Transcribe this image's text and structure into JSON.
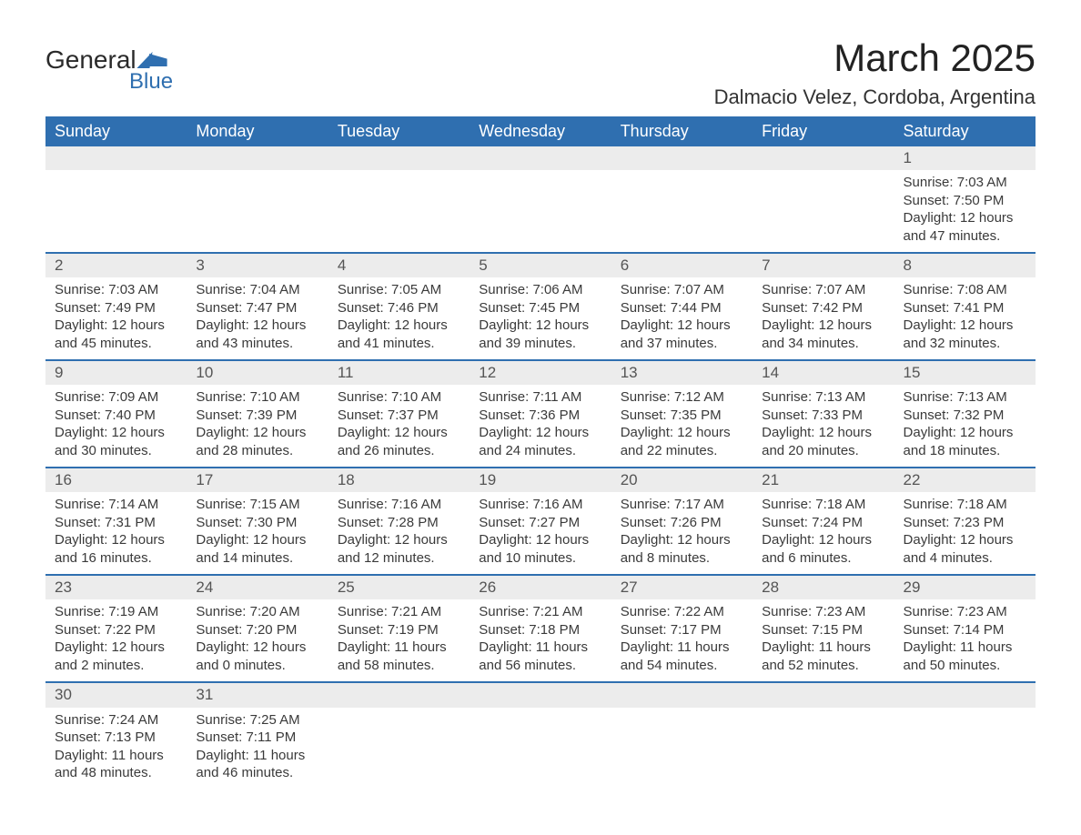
{
  "logo": {
    "text1": "General",
    "text2": "Blue",
    "brand_color": "#2f6fb0"
  },
  "title": "March 2025",
  "subtitle": "Dalmacio Velez, Cordoba, Argentina",
  "colors": {
    "header_bg": "#2f6fb0",
    "header_text": "#ffffff",
    "daynum_bg": "#ececec",
    "text": "#3a3a3a",
    "separator": "#2f6fb0"
  },
  "day_headers": [
    "Sunday",
    "Monday",
    "Tuesday",
    "Wednesday",
    "Thursday",
    "Friday",
    "Saturday"
  ],
  "weeks": [
    [
      null,
      null,
      null,
      null,
      null,
      null,
      {
        "n": "1",
        "sunrise": "Sunrise: 7:03 AM",
        "sunset": "Sunset: 7:50 PM",
        "day1": "Daylight: 12 hours",
        "day2": "and 47 minutes."
      }
    ],
    [
      {
        "n": "2",
        "sunrise": "Sunrise: 7:03 AM",
        "sunset": "Sunset: 7:49 PM",
        "day1": "Daylight: 12 hours",
        "day2": "and 45 minutes."
      },
      {
        "n": "3",
        "sunrise": "Sunrise: 7:04 AM",
        "sunset": "Sunset: 7:47 PM",
        "day1": "Daylight: 12 hours",
        "day2": "and 43 minutes."
      },
      {
        "n": "4",
        "sunrise": "Sunrise: 7:05 AM",
        "sunset": "Sunset: 7:46 PM",
        "day1": "Daylight: 12 hours",
        "day2": "and 41 minutes."
      },
      {
        "n": "5",
        "sunrise": "Sunrise: 7:06 AM",
        "sunset": "Sunset: 7:45 PM",
        "day1": "Daylight: 12 hours",
        "day2": "and 39 minutes."
      },
      {
        "n": "6",
        "sunrise": "Sunrise: 7:07 AM",
        "sunset": "Sunset: 7:44 PM",
        "day1": "Daylight: 12 hours",
        "day2": "and 37 minutes."
      },
      {
        "n": "7",
        "sunrise": "Sunrise: 7:07 AM",
        "sunset": "Sunset: 7:42 PM",
        "day1": "Daylight: 12 hours",
        "day2": "and 34 minutes."
      },
      {
        "n": "8",
        "sunrise": "Sunrise: 7:08 AM",
        "sunset": "Sunset: 7:41 PM",
        "day1": "Daylight: 12 hours",
        "day2": "and 32 minutes."
      }
    ],
    [
      {
        "n": "9",
        "sunrise": "Sunrise: 7:09 AM",
        "sunset": "Sunset: 7:40 PM",
        "day1": "Daylight: 12 hours",
        "day2": "and 30 minutes."
      },
      {
        "n": "10",
        "sunrise": "Sunrise: 7:10 AM",
        "sunset": "Sunset: 7:39 PM",
        "day1": "Daylight: 12 hours",
        "day2": "and 28 minutes."
      },
      {
        "n": "11",
        "sunrise": "Sunrise: 7:10 AM",
        "sunset": "Sunset: 7:37 PM",
        "day1": "Daylight: 12 hours",
        "day2": "and 26 minutes."
      },
      {
        "n": "12",
        "sunrise": "Sunrise: 7:11 AM",
        "sunset": "Sunset: 7:36 PM",
        "day1": "Daylight: 12 hours",
        "day2": "and 24 minutes."
      },
      {
        "n": "13",
        "sunrise": "Sunrise: 7:12 AM",
        "sunset": "Sunset: 7:35 PM",
        "day1": "Daylight: 12 hours",
        "day2": "and 22 minutes."
      },
      {
        "n": "14",
        "sunrise": "Sunrise: 7:13 AM",
        "sunset": "Sunset: 7:33 PM",
        "day1": "Daylight: 12 hours",
        "day2": "and 20 minutes."
      },
      {
        "n": "15",
        "sunrise": "Sunrise: 7:13 AM",
        "sunset": "Sunset: 7:32 PM",
        "day1": "Daylight: 12 hours",
        "day2": "and 18 minutes."
      }
    ],
    [
      {
        "n": "16",
        "sunrise": "Sunrise: 7:14 AM",
        "sunset": "Sunset: 7:31 PM",
        "day1": "Daylight: 12 hours",
        "day2": "and 16 minutes."
      },
      {
        "n": "17",
        "sunrise": "Sunrise: 7:15 AM",
        "sunset": "Sunset: 7:30 PM",
        "day1": "Daylight: 12 hours",
        "day2": "and 14 minutes."
      },
      {
        "n": "18",
        "sunrise": "Sunrise: 7:16 AM",
        "sunset": "Sunset: 7:28 PM",
        "day1": "Daylight: 12 hours",
        "day2": "and 12 minutes."
      },
      {
        "n": "19",
        "sunrise": "Sunrise: 7:16 AM",
        "sunset": "Sunset: 7:27 PM",
        "day1": "Daylight: 12 hours",
        "day2": "and 10 minutes."
      },
      {
        "n": "20",
        "sunrise": "Sunrise: 7:17 AM",
        "sunset": "Sunset: 7:26 PM",
        "day1": "Daylight: 12 hours",
        "day2": "and 8 minutes."
      },
      {
        "n": "21",
        "sunrise": "Sunrise: 7:18 AM",
        "sunset": "Sunset: 7:24 PM",
        "day1": "Daylight: 12 hours",
        "day2": "and 6 minutes."
      },
      {
        "n": "22",
        "sunrise": "Sunrise: 7:18 AM",
        "sunset": "Sunset: 7:23 PM",
        "day1": "Daylight: 12 hours",
        "day2": "and 4 minutes."
      }
    ],
    [
      {
        "n": "23",
        "sunrise": "Sunrise: 7:19 AM",
        "sunset": "Sunset: 7:22 PM",
        "day1": "Daylight: 12 hours",
        "day2": "and 2 minutes."
      },
      {
        "n": "24",
        "sunrise": "Sunrise: 7:20 AM",
        "sunset": "Sunset: 7:20 PM",
        "day1": "Daylight: 12 hours",
        "day2": "and 0 minutes."
      },
      {
        "n": "25",
        "sunrise": "Sunrise: 7:21 AM",
        "sunset": "Sunset: 7:19 PM",
        "day1": "Daylight: 11 hours",
        "day2": "and 58 minutes."
      },
      {
        "n": "26",
        "sunrise": "Sunrise: 7:21 AM",
        "sunset": "Sunset: 7:18 PM",
        "day1": "Daylight: 11 hours",
        "day2": "and 56 minutes."
      },
      {
        "n": "27",
        "sunrise": "Sunrise: 7:22 AM",
        "sunset": "Sunset: 7:17 PM",
        "day1": "Daylight: 11 hours",
        "day2": "and 54 minutes."
      },
      {
        "n": "28",
        "sunrise": "Sunrise: 7:23 AM",
        "sunset": "Sunset: 7:15 PM",
        "day1": "Daylight: 11 hours",
        "day2": "and 52 minutes."
      },
      {
        "n": "29",
        "sunrise": "Sunrise: 7:23 AM",
        "sunset": "Sunset: 7:14 PM",
        "day1": "Daylight: 11 hours",
        "day2": "and 50 minutes."
      }
    ],
    [
      {
        "n": "30",
        "sunrise": "Sunrise: 7:24 AM",
        "sunset": "Sunset: 7:13 PM",
        "day1": "Daylight: 11 hours",
        "day2": "and 48 minutes."
      },
      {
        "n": "31",
        "sunrise": "Sunrise: 7:25 AM",
        "sunset": "Sunset: 7:11 PM",
        "day1": "Daylight: 11 hours",
        "day2": "and 46 minutes."
      },
      null,
      null,
      null,
      null,
      null
    ]
  ]
}
